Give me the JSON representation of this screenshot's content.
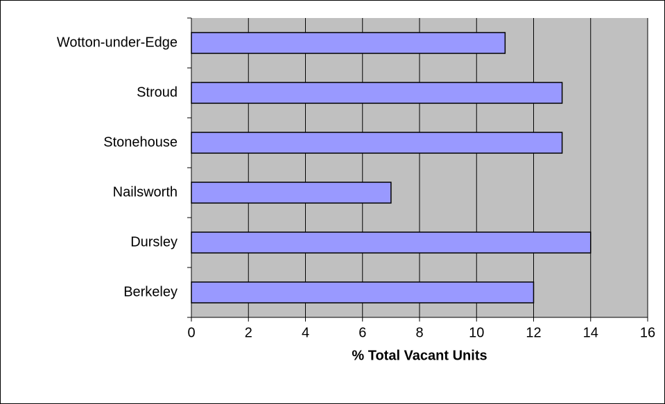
{
  "chart_data": {
    "type": "bar",
    "orientation": "horizontal",
    "categories": [
      "Berkeley",
      "Dursley",
      "Nailsworth",
      "Stonehouse",
      "Stroud",
      "Wotton-under-Edge"
    ],
    "values": [
      12,
      14,
      7,
      13,
      13,
      11
    ],
    "color": "#9999ff",
    "xlabel": "% Total Vacant Units",
    "xlim": [
      0,
      16
    ],
    "xticks": [
      0,
      2,
      4,
      6,
      8,
      10,
      12,
      14,
      16
    ],
    "grid": true,
    "plot_background": "#c0c0c0"
  }
}
